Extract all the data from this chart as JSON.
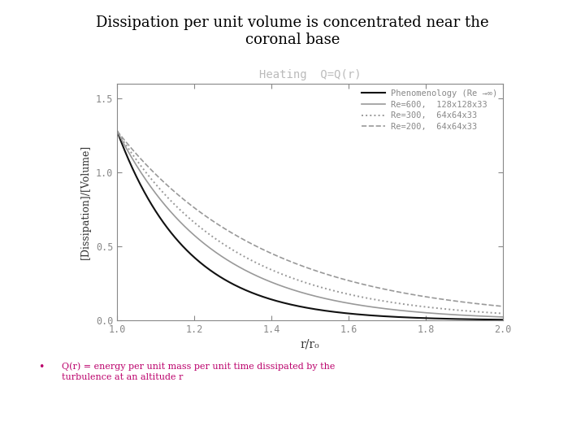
{
  "title_line1": "Dissipation per unit volume is concentrated near the",
  "title_line2": "coronal base",
  "title_fontsize": 13,
  "plot_title": "Heating  Q=Q(r)",
  "plot_title_color": "#bbbbbb",
  "xlabel": "r/r₀",
  "ylabel": "[Dissipation]/[Volume]",
  "xlim": [
    1.0,
    2.0
  ],
  "ylim": [
    0.0,
    1.6
  ],
  "xticks": [
    1.0,
    1.2,
    1.4,
    1.6,
    1.8,
    2.0
  ],
  "yticks": [
    0.0,
    0.5,
    1.0,
    1.5
  ],
  "legend_entries": [
    "Phenomenology (Re →∞)",
    "Re=600,  128x128x33",
    "Re=300,  64x64x33",
    "Re=200,  64x64x33"
  ],
  "bullet_text_line1": "Q(r) = energy per unit mass per unit time dissipated by the",
  "bullet_text_line2": "turbulence at an altitude r",
  "bullet_color": "#bb006b",
  "background_color": "#ffffff",
  "tick_color": "#888888",
  "spine_color": "#888888",
  "curve_amps": [
    1.28,
    1.28,
    1.28,
    1.28
  ],
  "curve_decays": [
    5.5,
    4.0,
    3.3,
    2.6
  ],
  "curve_colors": [
    "#111111",
    "#999999",
    "#999999",
    "#999999"
  ],
  "curve_lw": [
    1.5,
    1.2,
    1.4,
    1.2
  ]
}
